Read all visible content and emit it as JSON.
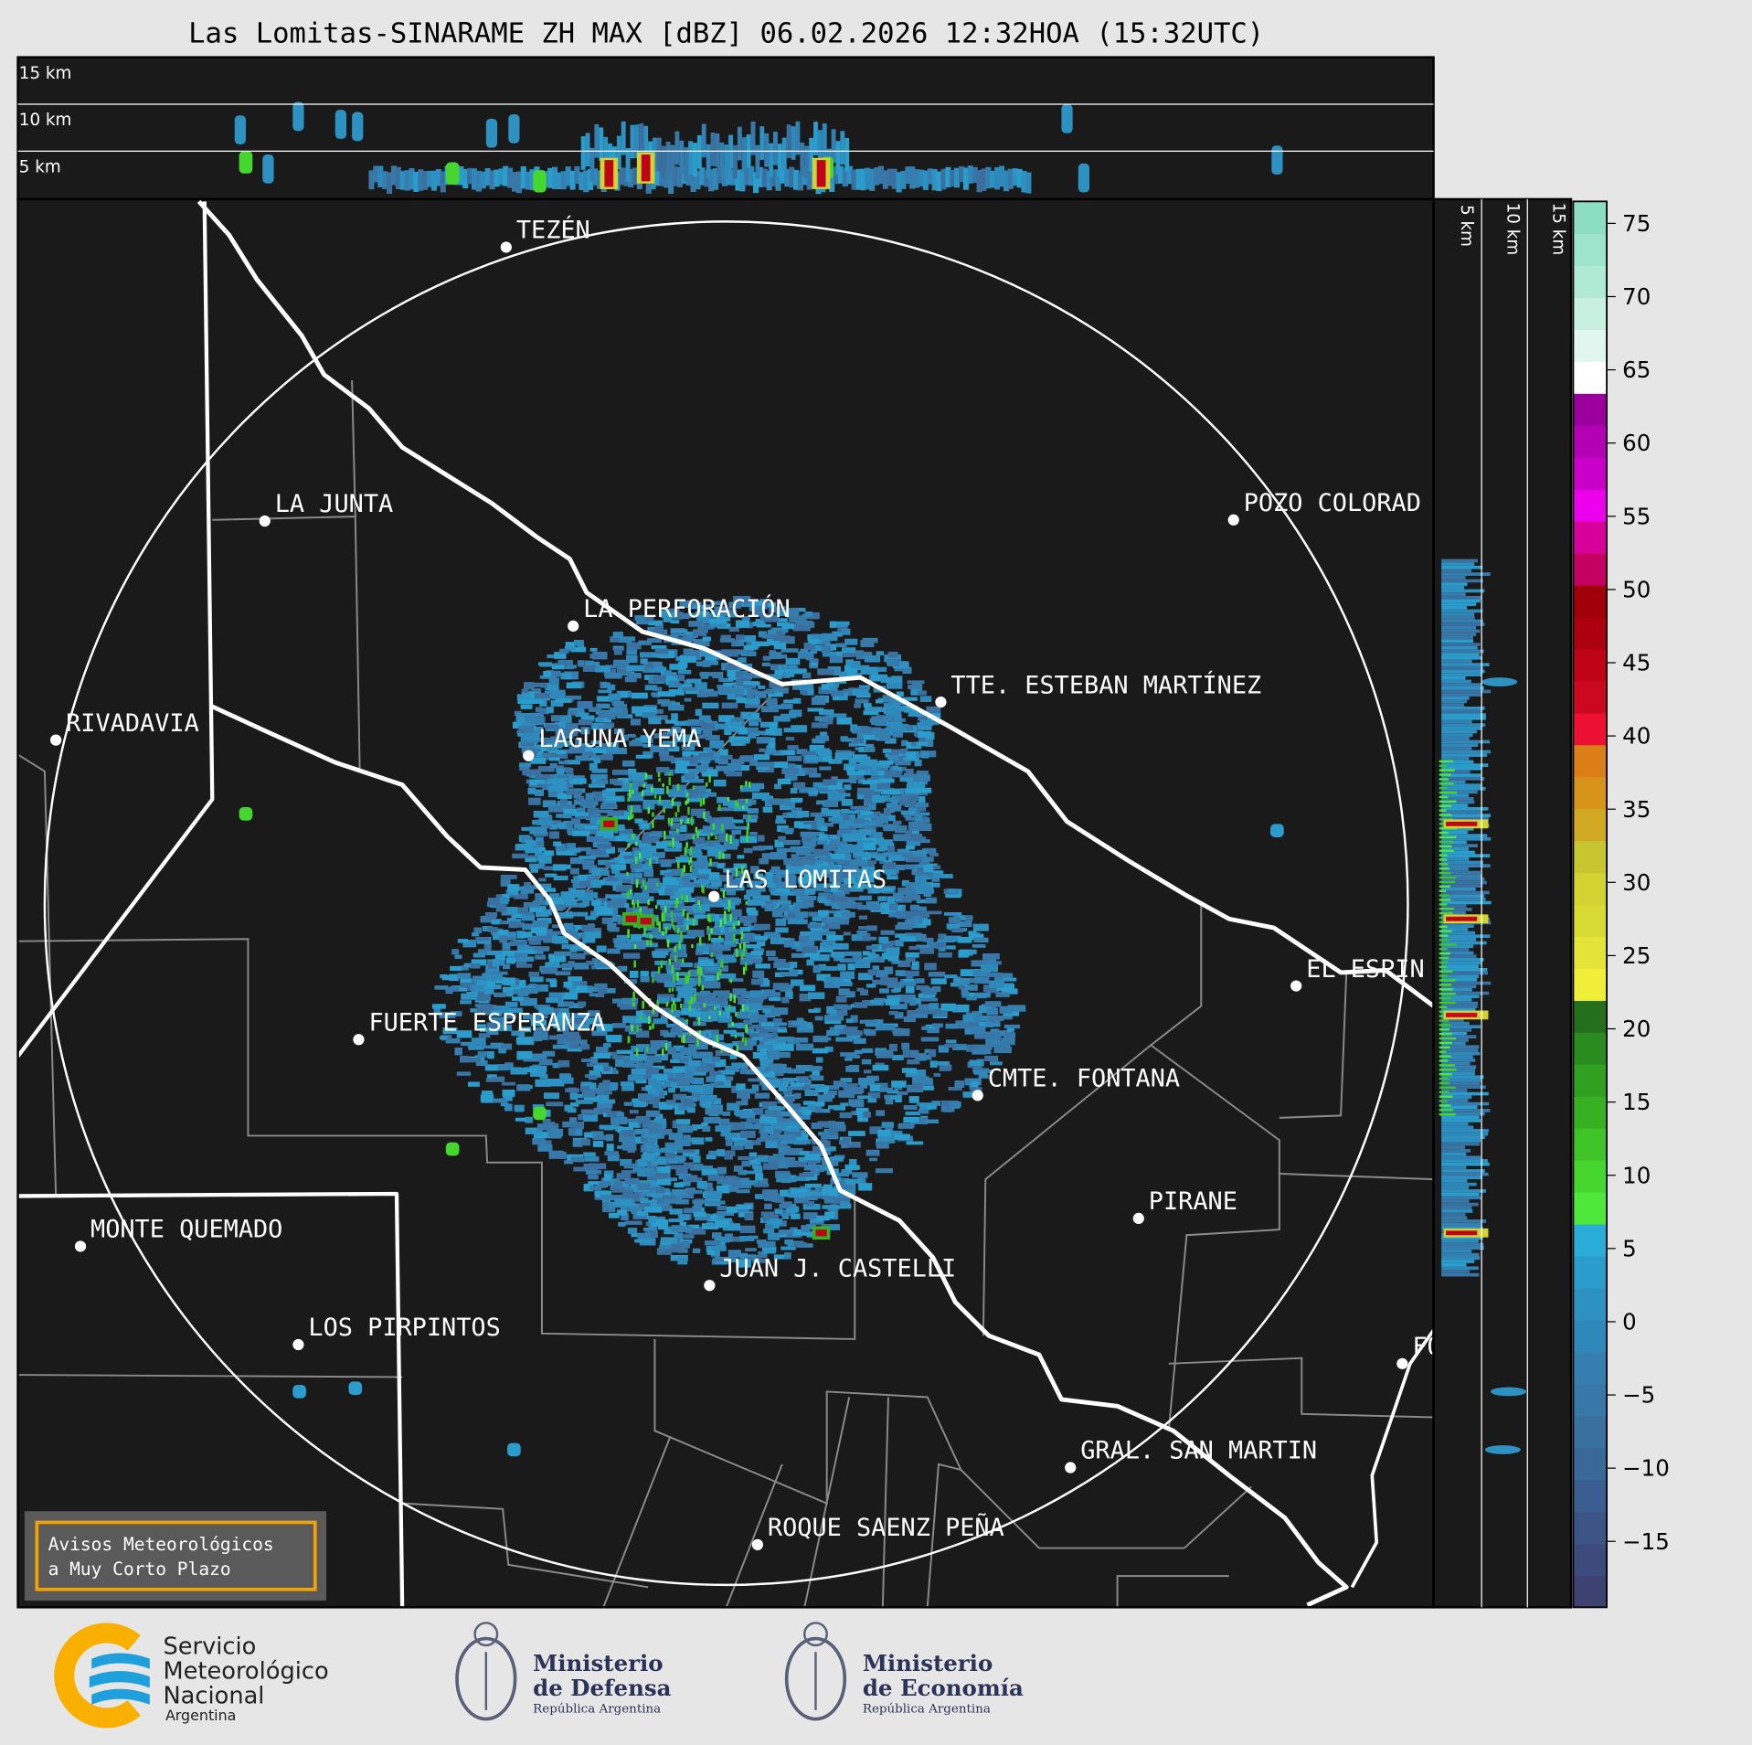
{
  "title": "Las Lomitas-SINARAME ZH MAX [dBZ] 06.02.2026 12:32HOA (15:32UTC)",
  "top_panel": {
    "height_labels": [
      "15 km",
      "10 km",
      "5 km"
    ]
  },
  "side_panel": {
    "height_labels": [
      "5 km",
      "10 km",
      "15 km"
    ]
  },
  "map": {
    "cities": [
      {
        "name": "TEZÉN"
      },
      {
        "name": "LA JUNTA"
      },
      {
        "name": "POZO COLORAD"
      },
      {
        "name": "LA PERFORACIÓN"
      },
      {
        "name": "TTE. ESTEBAN MARTÍNEZ"
      },
      {
        "name": "RIVADAVIA"
      },
      {
        "name": "LAGUNA YEMA"
      },
      {
        "name": "LAS LOMITAS"
      },
      {
        "name": "EL ESPIN"
      },
      {
        "name": "FUERTE ESPERANZA"
      },
      {
        "name": "CMTE. FONTANA"
      },
      {
        "name": "PIRANE"
      },
      {
        "name": "MONTE QUEMADO"
      },
      {
        "name": "JUAN J. CASTELLI"
      },
      {
        "name": "LOS PIRPINTOS"
      },
      {
        "name": "FO"
      },
      {
        "name": "GRAL. SAN MARTIN"
      },
      {
        "name": "ROQUE SAENZ PEÑA"
      }
    ],
    "warning_box": {
      "line1": "Avisos Meteorológicos",
      "line2": "a Muy Corto Plazo",
      "border_color": "#f5a300"
    }
  },
  "colorbar": {
    "unit": "dBZ",
    "ticks": [
      "75",
      "70",
      "65",
      "60",
      "55",
      "50",
      "45",
      "40",
      "35",
      "30",
      "25",
      "20",
      "15",
      "10",
      "5",
      "0",
      "−5",
      "−10",
      "−15"
    ],
    "tick_values": [
      75,
      70,
      65,
      60,
      55,
      50,
      45,
      40,
      35,
      30,
      25,
      20,
      15,
      10,
      5,
      0,
      -5,
      -10,
      -15
    ],
    "range": [
      -19.5,
      76.5
    ],
    "colors": [
      "#3e4270",
      "#3d4a7c",
      "#3c5486",
      "#3a5e90",
      "#3a6898",
      "#3a70a0",
      "#3878a8",
      "#347fb0",
      "#2f88ba",
      "#2d92c2",
      "#2a9dcc",
      "#29acd8",
      "#4de83a",
      "#46d72e",
      "#3fc428",
      "#38b024",
      "#30a020",
      "#2a8c1e",
      "#236f1c",
      "#f0ee38",
      "#e2e438",
      "#d8da34",
      "#d2d230",
      "#c8c630",
      "#d0a822",
      "#d8941a",
      "#dc7e18",
      "#ec1032",
      "#cc0820",
      "#c00418",
      "#ac0010",
      "#a00008",
      "#c40060",
      "#d8009a",
      "#ec00ec",
      "#c800c8",
      "#b400b4",
      "#9c009c",
      "#ffffff",
      "#e0f6ee",
      "#c8f0e0",
      "#b0ead4",
      "#9ee4cc",
      "#8cdec2"
    ]
  },
  "logos": {
    "smn": {
      "line1": "Servicio",
      "line2": "Meteorológico",
      "line3": "Nacional",
      "line4": "Argentina"
    },
    "defensa": {
      "line1": "Ministerio",
      "line2": "de Defensa",
      "line3": "República Argentina"
    },
    "economia": {
      "line1": "Ministerio",
      "line2": "de Economía",
      "line3": "República Argentina"
    }
  }
}
